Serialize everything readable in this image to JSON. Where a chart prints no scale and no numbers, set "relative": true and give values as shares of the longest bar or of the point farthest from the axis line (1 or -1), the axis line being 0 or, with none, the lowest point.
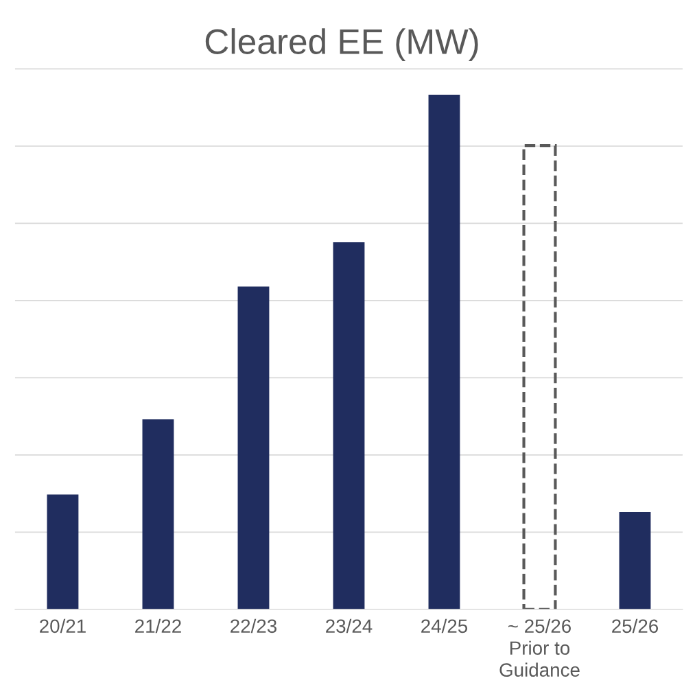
{
  "chart_data": {
    "type": "bar",
    "title": "Cleared EE (MW)",
    "relative": true,
    "grid": "y",
    "categories": [
      "20/21",
      "21/22",
      "22/23",
      "23/24",
      "24/25",
      "~ 25/26\nPrior to\nGuidance",
      "25/26"
    ],
    "series": [
      {
        "color": "#202d5f",
        "values": [
          0.223,
          0.369,
          0.627,
          0.713,
          1,
          null,
          0.189
        ]
      },
      {
        "color": "#595959",
        "line_style": "dashed",
        "values": [
          null,
          null,
          null,
          null,
          null,
          0.901,
          null
        ]
      }
    ]
  }
}
